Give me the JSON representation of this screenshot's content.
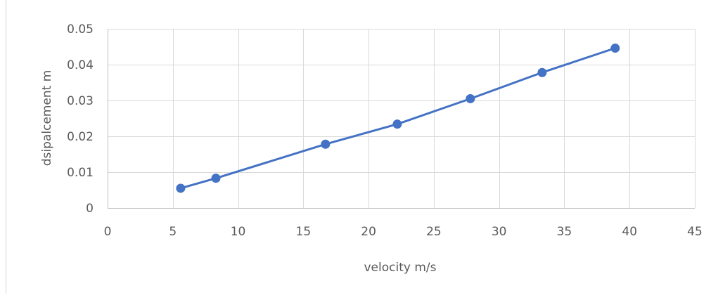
{
  "chart_data": {
    "type": "scatter",
    "mode": "lines+markers",
    "title": "",
    "xlabel": "velocity m/s",
    "ylabel": "dsipalcement m",
    "xlim": [
      0,
      45
    ],
    "ylim": [
      0,
      0.05
    ],
    "xticks": [
      0,
      5,
      10,
      15,
      20,
      25,
      30,
      35,
      40,
      45
    ],
    "xtick_labels": [
      "0",
      "5",
      "10",
      "15",
      "20",
      "25",
      "30",
      "35",
      "40",
      "45"
    ],
    "yticks": [
      0,
      0.01,
      0.02,
      0.03,
      0.04,
      0.05
    ],
    "ytick_labels": [
      "0",
      "0.01",
      "0.02",
      "0.03",
      "0.04",
      "0.05"
    ],
    "grid": true,
    "legend": "none",
    "series": [
      {
        "color": "#4472c4",
        "x": [
          5.6,
          8.3,
          16.7,
          22.2,
          27.8,
          33.3,
          38.9
        ],
        "y": [
          0.0055,
          0.0083,
          0.0178,
          0.0234,
          0.0305,
          0.0378,
          0.0446
        ]
      }
    ],
    "gridline_color": "#d9d9d9",
    "axis_color": "#bfbfbf"
  }
}
